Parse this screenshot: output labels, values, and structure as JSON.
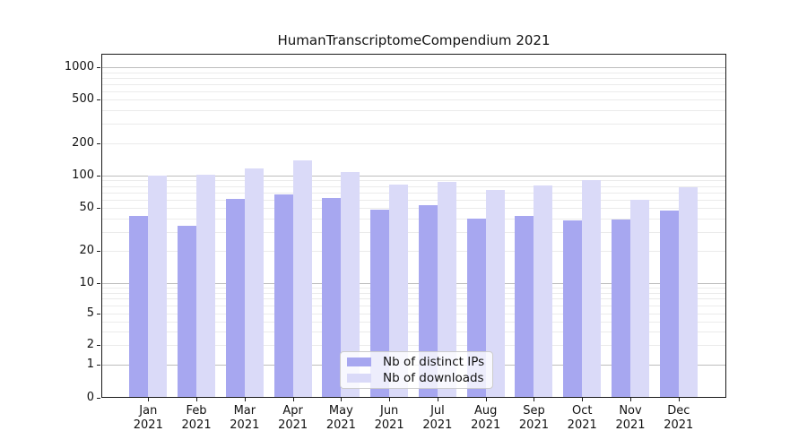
{
  "title": "HumanTranscriptomeCompendium 2021",
  "chart_data": {
    "type": "bar",
    "title": "HumanTranscriptomeCompendium 2021",
    "categories": [
      "Jan",
      "Feb",
      "Mar",
      "Apr",
      "May",
      "Jun",
      "Jul",
      "Aug",
      "Sep",
      "Oct",
      "Nov",
      "Dec"
    ],
    "category_sublabel": "2021",
    "series": [
      {
        "name": "Nb of distinct IPs",
        "color": "#a7a7f0",
        "values": [
          42,
          34,
          61,
          67,
          62,
          48,
          53,
          40,
          42,
          38,
          39,
          47
        ]
      },
      {
        "name": "Nb of downloads",
        "color": "#dadaf8",
        "values": [
          100,
          102,
          117,
          139,
          108,
          83,
          88,
          74,
          81,
          90,
          60,
          78
        ]
      }
    ],
    "xlabel": "",
    "ylabel": "",
    "yscale": "symlog",
    "yticks": [
      0,
      1,
      2,
      5,
      10,
      20,
      50,
      100,
      200,
      500,
      1000
    ],
    "ylim": [
      0,
      1360
    ],
    "grid": "horizontal log minor + decade major",
    "legend_position": "inside lower-center"
  },
  "colors": {
    "bar_dark": "#a7a7f0",
    "bar_light": "#dadaf8",
    "grid_minor": "#ebebeb",
    "grid_major": "#bdbdbd",
    "spine": "#1a1a1a",
    "background": "#ffffff"
  }
}
